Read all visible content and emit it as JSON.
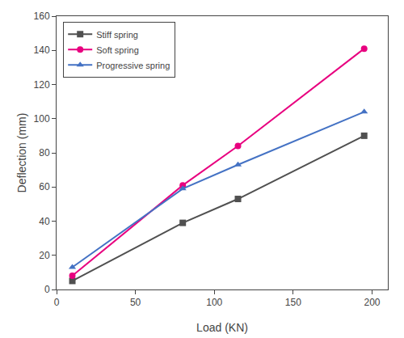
{
  "chart_data": {
    "type": "line",
    "xlabel": "Load (KN)",
    "ylabel": "Deflection (mm)",
    "xlim": [
      0,
      210
    ],
    "ylim": [
      0,
      160
    ],
    "xticks": [
      0,
      50,
      100,
      150,
      200
    ],
    "yticks": [
      0,
      20,
      40,
      60,
      80,
      100,
      120,
      140,
      160
    ],
    "x": [
      10,
      80,
      115,
      195
    ],
    "series": [
      {
        "name": "Stiff spring",
        "color": "#505050",
        "marker": "square",
        "values": [
          5,
          39,
          53,
          90
        ]
      },
      {
        "name": "Soft spring",
        "color": "#e8007f",
        "marker": "circle",
        "values": [
          8,
          61,
          84,
          141
        ]
      },
      {
        "name": "Progressive spring",
        "color": "#4472c4",
        "marker": "triangle-up",
        "values": [
          13,
          59,
          73,
          104
        ]
      }
    ],
    "legend": "upper left",
    "grid": false
  }
}
